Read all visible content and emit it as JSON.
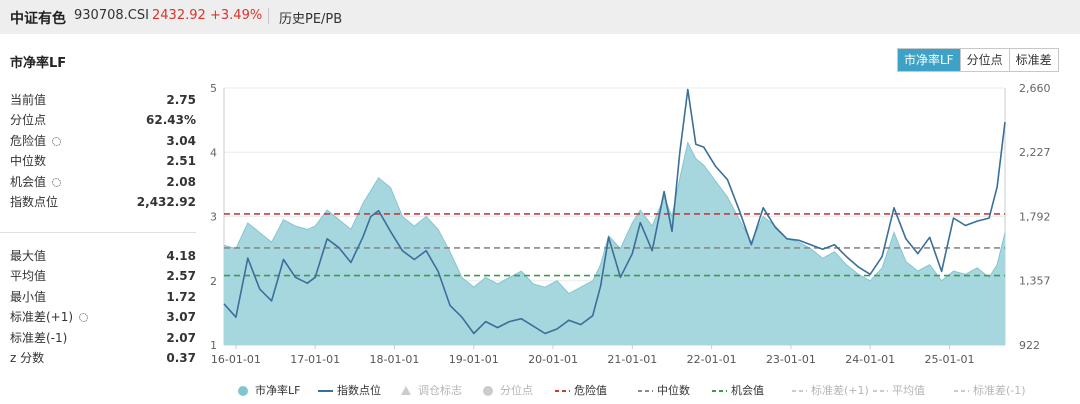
{
  "header": {
    "index_name": "中证有色",
    "index_code": "930708.CSI",
    "price": "2432.92",
    "change": "+3.49%",
    "tab_label": "历史PE/PB"
  },
  "section_title": "市净率LF",
  "toggle_buttons": [
    {
      "label": "市净率LF",
      "active": true
    },
    {
      "label": "分位点",
      "active": false
    },
    {
      "label": "标准差",
      "active": false
    }
  ],
  "stats_top": [
    {
      "label": "当前值",
      "value": "2.75",
      "settings_icon": false
    },
    {
      "label": "分位点",
      "value": "62.43%",
      "settings_icon": false
    },
    {
      "label": "危险值",
      "value": "3.04",
      "settings_icon": true
    },
    {
      "label": "中位数",
      "value": "2.51",
      "settings_icon": false
    },
    {
      "label": "机会值",
      "value": "2.08",
      "settings_icon": true
    },
    {
      "label": "指数点位",
      "value": "2,432.92",
      "settings_icon": false
    }
  ],
  "stats_bottom": [
    {
      "label": "最大值",
      "value": "4.18",
      "settings_icon": false
    },
    {
      "label": "平均值",
      "value": "2.57",
      "settings_icon": false
    },
    {
      "label": "最小值",
      "value": "1.72",
      "settings_icon": false
    },
    {
      "label": "标准差(+1)",
      "value": "3.07",
      "settings_icon": true
    },
    {
      "label": "标准差(-1)",
      "value": "2.07",
      "settings_icon": false
    },
    {
      "label": "z 分数",
      "value": "0.37",
      "settings_icon": false
    }
  ],
  "colors": {
    "area_fill": "#a7d7de",
    "area_line": "#86c5cf",
    "index_line": "#3a6f9a",
    "danger": "#c93b3b",
    "median": "#8a8a8a",
    "opportunity": "#3f9a4a",
    "accent": "#3ea2c7",
    "price_text": "#d9342b"
  },
  "chart_data": {
    "type": "line",
    "x_tick_labels": [
      "16-01-01",
      "17-01-01",
      "18-01-01",
      "19-01-01",
      "20-01-01",
      "21-01-01",
      "22-01-01",
      "23-01-01",
      "24-01-01",
      "25-01-01"
    ],
    "x_range": [
      2015.85,
      2025.7
    ],
    "y_left": {
      "ticks": [
        "1",
        "2",
        "3",
        "4",
        "5"
      ],
      "range": [
        1,
        5
      ]
    },
    "y_right": {
      "ticks": [
        "922",
        "1,357",
        "1,792",
        "2,227",
        "2,660"
      ],
      "range": [
        922,
        2660
      ]
    },
    "reference_lines": [
      {
        "name": "危险值",
        "value": 3.04,
        "style": "dashed",
        "color": "#c93b3b"
      },
      {
        "name": "中位数",
        "value": 2.51,
        "style": "dashed",
        "color": "#8a8a8a"
      },
      {
        "name": "机会值",
        "value": 2.08,
        "style": "dashed",
        "color": "#3f9a4a"
      }
    ],
    "series": [
      {
        "name": "市净率LF",
        "type": "area",
        "axis": "left",
        "x": [
          2015.85,
          2016.0,
          2016.15,
          2016.3,
          2016.45,
          2016.6,
          2016.75,
          2016.9,
          2017.0,
          2017.15,
          2017.3,
          2017.45,
          2017.6,
          2017.7,
          2017.8,
          2017.95,
          2018.1,
          2018.25,
          2018.4,
          2018.55,
          2018.7,
          2018.85,
          2019.0,
          2019.15,
          2019.3,
          2019.45,
          2019.6,
          2019.75,
          2019.9,
          2020.05,
          2020.2,
          2020.35,
          2020.5,
          2020.6,
          2020.7,
          2020.85,
          2021.0,
          2021.1,
          2021.25,
          2021.4,
          2021.5,
          2021.6,
          2021.7,
          2021.8,
          2021.9,
          2022.05,
          2022.2,
          2022.35,
          2022.5,
          2022.65,
          2022.8,
          2022.95,
          2023.1,
          2023.25,
          2023.4,
          2023.55,
          2023.7,
          2023.85,
          2024.0,
          2024.15,
          2024.3,
          2024.45,
          2024.6,
          2024.75,
          2024.9,
          2025.05,
          2025.2,
          2025.35,
          2025.5,
          2025.6,
          2025.7
        ],
        "values": [
          2.55,
          2.5,
          2.9,
          2.75,
          2.6,
          2.95,
          2.85,
          2.8,
          2.85,
          3.1,
          2.95,
          2.8,
          3.2,
          3.4,
          3.6,
          3.45,
          3.0,
          2.85,
          3.0,
          2.8,
          2.45,
          2.05,
          1.9,
          2.05,
          1.95,
          2.05,
          2.15,
          1.95,
          1.9,
          2.0,
          1.8,
          1.9,
          2.0,
          2.25,
          2.7,
          2.5,
          2.9,
          3.1,
          2.85,
          3.3,
          3.0,
          3.6,
          4.15,
          3.9,
          3.8,
          3.55,
          3.3,
          2.95,
          2.6,
          3.0,
          2.85,
          2.65,
          2.6,
          2.5,
          2.35,
          2.45,
          2.25,
          2.1,
          2.0,
          2.2,
          2.75,
          2.3,
          2.15,
          2.25,
          2.0,
          2.15,
          2.1,
          2.2,
          2.05,
          2.25,
          2.75
        ]
      },
      {
        "name": "指数点位",
        "type": "line",
        "axis": "right",
        "x": [
          2015.85,
          2016.0,
          2016.15,
          2016.3,
          2016.45,
          2016.6,
          2016.75,
          2016.9,
          2017.0,
          2017.15,
          2017.3,
          2017.45,
          2017.6,
          2017.7,
          2017.8,
          2017.95,
          2018.1,
          2018.25,
          2018.4,
          2018.55,
          2018.7,
          2018.85,
          2019.0,
          2019.15,
          2019.3,
          2019.45,
          2019.6,
          2019.75,
          2019.9,
          2020.05,
          2020.2,
          2020.35,
          2020.5,
          2020.6,
          2020.7,
          2020.85,
          2021.0,
          2021.1,
          2021.25,
          2021.4,
          2021.5,
          2021.6,
          2021.7,
          2021.8,
          2021.9,
          2022.05,
          2022.2,
          2022.35,
          2022.5,
          2022.65,
          2022.8,
          2022.95,
          2023.1,
          2023.25,
          2023.4,
          2023.55,
          2023.7,
          2023.85,
          2024.0,
          2024.15,
          2024.3,
          2024.45,
          2024.6,
          2024.75,
          2024.9,
          2025.05,
          2025.2,
          2025.35,
          2025.5,
          2025.6,
          2025.7
        ],
        "values": [
          1200,
          1110,
          1510,
          1300,
          1220,
          1500,
          1380,
          1340,
          1380,
          1640,
          1580,
          1480,
          1650,
          1790,
          1830,
          1690,
          1560,
          1500,
          1560,
          1420,
          1190,
          1110,
          1000,
          1080,
          1040,
          1080,
          1100,
          1050,
          1000,
          1030,
          1090,
          1060,
          1120,
          1320,
          1650,
          1380,
          1540,
          1750,
          1560,
          1960,
          1690,
          2230,
          2650,
          2280,
          2260,
          2130,
          2040,
          1830,
          1600,
          1850,
          1720,
          1640,
          1630,
          1600,
          1570,
          1600,
          1520,
          1450,
          1400,
          1520,
          1850,
          1640,
          1540,
          1650,
          1420,
          1780,
          1730,
          1760,
          1780,
          1990,
          2430
        ]
      }
    ],
    "legend": [
      {
        "name": "市净率LF",
        "symbol": "circle",
        "active": true
      },
      {
        "name": "指数点位",
        "symbol": "line",
        "active": true
      },
      {
        "name": "调仓标志",
        "symbol": "triangle",
        "active": false
      },
      {
        "name": "分位点",
        "symbol": "circle",
        "active": false
      },
      {
        "name": "危险值",
        "symbol": "dashed",
        "active": true
      },
      {
        "name": "中位数",
        "symbol": "dashed",
        "active": true
      },
      {
        "name": "机会值",
        "symbol": "dashed",
        "active": true
      },
      {
        "name": "标准差(+1)",
        "symbol": "dashed",
        "active": false
      },
      {
        "name": "平均值",
        "symbol": "dashed",
        "active": false
      },
      {
        "name": "标准差(-1)",
        "symbol": "dashed",
        "active": false
      }
    ]
  }
}
